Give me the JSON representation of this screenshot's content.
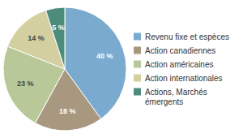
{
  "chart_data": {
    "type": "pie",
    "categories": [
      "Revenu fixe et espèces",
      "Action canadiennes",
      "Action américaines",
      "Action internationales",
      "Actions, Marchés\némergents"
    ],
    "values": [
      40,
      18,
      23,
      14,
      5
    ],
    "value_labels": [
      "40 %",
      "18 %",
      "23 %",
      "14 %",
      "5 %"
    ],
    "colors": [
      "#7aaace",
      "#a89880",
      "#b8c898",
      "#d4cfa0",
      "#4d8c7a"
    ],
    "data_labels": true,
    "legend": "right"
  }
}
